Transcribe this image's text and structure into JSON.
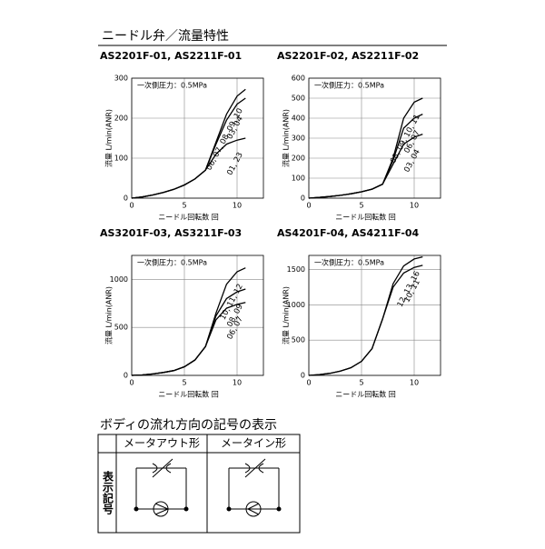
{
  "header": {
    "title": "ニードル弁／流量特性"
  },
  "chart_data": [
    {
      "type": "line",
      "title": "AS2201F-01, AS2211F-01",
      "annotation": "一次側圧力：0.5MPa",
      "x_label": "ニードル回転数 回",
      "y_label": "流量 L/min(ANR)",
      "x": [
        0,
        1,
        2,
        3,
        4,
        5,
        6,
        7,
        8,
        9,
        10,
        10.8
      ],
      "xlim": [
        0,
        12.5
      ],
      "xticks": [
        0,
        5,
        10
      ],
      "ylim": [
        0,
        300
      ],
      "yticks": [
        0,
        100,
        200,
        300
      ],
      "grid": true,
      "series": [
        {
          "name": "06, 07, 08, 09, 10",
          "color": "#000000",
          "values": [
            0,
            3,
            8,
            14,
            22,
            33,
            48,
            70,
            140,
            210,
            255,
            272
          ]
        },
        {
          "name": "03, 04",
          "color": "#000000",
          "values": [
            0,
            3,
            8,
            14,
            22,
            33,
            48,
            70,
            135,
            195,
            235,
            250
          ]
        },
        {
          "name": "01, 23",
          "color": "#000000",
          "values": [
            0,
            3,
            8,
            14,
            22,
            33,
            48,
            70,
            110,
            135,
            145,
            150
          ]
        }
      ]
    },
    {
      "type": "line",
      "title": "AS2201F-02, AS2211F-02",
      "annotation": "一次側圧力：0.5MPa",
      "x_label": "ニードル回転数 回",
      "y_label": "流量 L/min(ANR)",
      "x": [
        0,
        1,
        2,
        3,
        4,
        5,
        6,
        7,
        8,
        9,
        10,
        10.8
      ],
      "xlim": [
        0,
        12.5
      ],
      "xticks": [
        0,
        5,
        10
      ],
      "ylim": [
        0,
        600
      ],
      "yticks": [
        0,
        100,
        200,
        300,
        400,
        500,
        600
      ],
      "grid": true,
      "series": [
        {
          "name": "08, 09, 10, 11",
          "color": "#000000",
          "values": [
            0,
            4,
            8,
            14,
            22,
            32,
            45,
            70,
            200,
            400,
            480,
            500
          ]
        },
        {
          "name": "06, 07",
          "color": "#000000",
          "values": [
            0,
            4,
            8,
            14,
            22,
            32,
            45,
            70,
            190,
            350,
            400,
            420
          ]
        },
        {
          "name": "03, 04",
          "color": "#000000",
          "values": [
            0,
            4,
            8,
            14,
            22,
            32,
            45,
            70,
            170,
            270,
            305,
            320
          ]
        }
      ]
    },
    {
      "type": "line",
      "title": "AS3201F-03, AS3211F-03",
      "annotation": "一次側圧力：0.5MPa",
      "x_label": "ニードル回転数 回",
      "y_label": "流量 L/min(ANR)",
      "x": [
        0,
        1,
        2,
        3,
        4,
        5,
        6,
        7,
        8,
        9,
        10,
        10.8
      ],
      "xlim": [
        0,
        12.5
      ],
      "xticks": [
        0,
        5,
        10
      ],
      "ylim": [
        0,
        1250
      ],
      "yticks": [
        0,
        500,
        1000
      ],
      "grid": true,
      "series": [
        {
          "name": "10, 11, 12",
          "color": "#000000",
          "values": [
            0,
            5,
            15,
            30,
            50,
            90,
            160,
            300,
            650,
            950,
            1080,
            1120
          ]
        },
        {
          "name": "08, 09",
          "color": "#000000",
          "values": [
            0,
            5,
            15,
            30,
            50,
            90,
            160,
            300,
            620,
            800,
            870,
            900
          ]
        },
        {
          "name": "06, 07",
          "color": "#000000",
          "values": [
            0,
            5,
            15,
            30,
            50,
            90,
            160,
            300,
            580,
            700,
            740,
            760
          ]
        }
      ]
    },
    {
      "type": "line",
      "title": "AS4201F-04, AS4211F-04",
      "annotation": "一次側圧力：0.5MPa",
      "x_label": "ニードル回転数 回",
      "y_label": "流量 L/min(ANR)",
      "x": [
        0,
        1,
        2,
        3,
        4,
        5,
        6,
        7,
        8,
        9,
        10,
        10.8
      ],
      "xlim": [
        0,
        12.5
      ],
      "xticks": [
        0,
        5,
        10
      ],
      "ylim": [
        0,
        1700
      ],
      "yticks": [
        0,
        500,
        1000,
        1500
      ],
      "grid": true,
      "series": [
        {
          "name": "12, 13, 16",
          "color": "#000000",
          "values": [
            0,
            10,
            30,
            60,
            110,
            200,
            380,
            800,
            1300,
            1550,
            1650,
            1680
          ]
        },
        {
          "name": "10, 11",
          "color": "#000000",
          "values": [
            0,
            10,
            30,
            60,
            110,
            200,
            380,
            800,
            1250,
            1450,
            1530,
            1560
          ]
        }
      ]
    }
  ],
  "symbol_section": {
    "title": "ボディの流れ方向の記号の表示",
    "columns": [
      "メータアウト形",
      "メータイン形"
    ],
    "row_header": "表示記号"
  }
}
